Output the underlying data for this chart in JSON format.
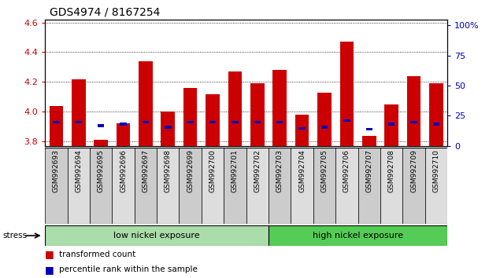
{
  "title": "GDS4974 / 8167254",
  "samples": [
    "GSM992693",
    "GSM992694",
    "GSM992695",
    "GSM992696",
    "GSM992697",
    "GSM992698",
    "GSM992699",
    "GSM992700",
    "GSM992701",
    "GSM992702",
    "GSM992703",
    "GSM992704",
    "GSM992705",
    "GSM992706",
    "GSM992707",
    "GSM992708",
    "GSM992709",
    "GSM992710"
  ],
  "red_values": [
    4.04,
    4.22,
    3.81,
    3.92,
    4.34,
    4.0,
    4.16,
    4.12,
    4.27,
    4.19,
    4.28,
    3.98,
    4.13,
    4.47,
    3.84,
    4.05,
    4.24,
    4.19
  ],
  "blue_values": [
    3.93,
    3.93,
    3.905,
    3.916,
    3.93,
    3.895,
    3.93,
    3.93,
    3.93,
    3.93,
    3.93,
    3.888,
    3.896,
    3.94,
    3.882,
    3.916,
    3.93,
    3.916
  ],
  "bar_bottom": 3.77,
  "ylim_left": [
    3.77,
    4.62
  ],
  "ylim_right": [
    0,
    105
  ],
  "yticks_left": [
    3.8,
    4.0,
    4.2,
    4.4,
    4.6
  ],
  "yticks_right": [
    0,
    25,
    50,
    75,
    100
  ],
  "ytick_right_labels": [
    "0",
    "25",
    "50",
    "75",
    "100%"
  ],
  "bar_color": "#cc0000",
  "blue_color": "#0000bb",
  "bar_width": 0.62,
  "bg_color": "#ffffff",
  "low_nickel_count": 10,
  "high_nickel_count": 8,
  "group_labels": [
    "low nickel exposure",
    "high nickel exposure"
  ],
  "group_color_low": "#aaddaa",
  "group_color_high": "#55cc55",
  "tick_bg_even": "#cccccc",
  "tick_bg_odd": "#dddddd",
  "stress_label": "stress",
  "legend_labels": [
    "transformed count",
    "percentile rank within the sample"
  ],
  "legend_colors": [
    "#cc0000",
    "#0000bb"
  ],
  "title_fontsize": 10,
  "axis_tick_color_left": "#cc0000",
  "axis_tick_color_right": "#0000bb"
}
